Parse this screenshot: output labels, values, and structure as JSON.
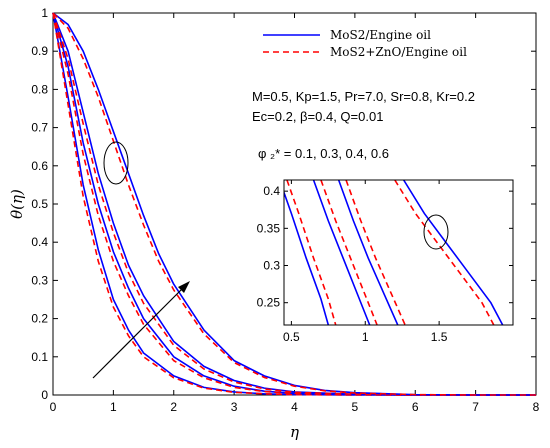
{
  "chart_data": {
    "type": "line",
    "title": "",
    "xlabel": "η",
    "ylabel": "θ(η)",
    "xlim": [
      0,
      8
    ],
    "ylim": [
      0,
      1
    ],
    "x_ticks": [
      0,
      1,
      2,
      3,
      4,
      5,
      6,
      7,
      8
    ],
    "y_ticks": [
      0,
      0.1,
      0.2,
      0.3,
      0.4,
      0.5,
      0.6,
      0.7,
      0.8,
      0.9,
      1
    ],
    "grid": false,
    "legend_position": "top-right",
    "legend": [
      {
        "label": "MoS2/Engine oil",
        "color": "#0000ff",
        "style": "solid"
      },
      {
        "label": "MoS2+ZnO/Engine oil",
        "color": "#ff0000",
        "style": "dashed"
      }
    ],
    "parameters": [
      "M=0.5, Kp=1.5, Pr=7.0, Sr=0.8, Kr=0.2",
      "Ec=0.2, β=0.4, Q=0.01"
    ],
    "phi_label": "φ ₂* = 0.1, 0.3, 0.4, 0.6",
    "series": [
      {
        "legend_index": 0,
        "color": "#0000ff",
        "style": "solid",
        "phi": 0.1,
        "x": [
          0,
          0.25,
          0.5,
          0.75,
          1,
          1.25,
          1.5,
          2,
          2.5,
          3,
          3.5,
          4,
          5,
          6,
          8
        ],
        "y": [
          1,
          0.78,
          0.55,
          0.38,
          0.25,
          0.17,
          0.11,
          0.05,
          0.02,
          0.008,
          0.003,
          0.001,
          0,
          0,
          0
        ]
      },
      {
        "legend_index": 1,
        "color": "#ff0000",
        "style": "dashed",
        "phi": 0.1,
        "x": [
          0,
          0.25,
          0.5,
          0.75,
          1,
          1.25,
          1.5,
          2,
          2.5,
          3,
          3.5,
          4,
          5,
          6,
          8
        ],
        "y": [
          1,
          0.76,
          0.52,
          0.35,
          0.23,
          0.155,
          0.1,
          0.045,
          0.018,
          0.007,
          0.003,
          0.001,
          0,
          0,
          0
        ]
      },
      {
        "legend_index": 0,
        "color": "#0000ff",
        "style": "solid",
        "phi": 0.3,
        "x": [
          0,
          0.25,
          0.5,
          0.75,
          1,
          1.25,
          1.5,
          2,
          2.5,
          3,
          3.5,
          4,
          5,
          6,
          8
        ],
        "y": [
          1,
          0.86,
          0.66,
          0.5,
          0.375,
          0.28,
          0.2,
          0.1,
          0.05,
          0.023,
          0.01,
          0.004,
          0.001,
          0,
          0
        ]
      },
      {
        "legend_index": 1,
        "color": "#ff0000",
        "style": "dashed",
        "phi": 0.3,
        "x": [
          0,
          0.25,
          0.5,
          0.75,
          1,
          1.25,
          1.5,
          2,
          2.5,
          3,
          3.5,
          4,
          5,
          6,
          8
        ],
        "y": [
          1,
          0.84,
          0.63,
          0.47,
          0.35,
          0.26,
          0.185,
          0.09,
          0.045,
          0.02,
          0.009,
          0.004,
          0.001,
          0,
          0
        ]
      },
      {
        "legend_index": 0,
        "color": "#0000ff",
        "style": "solid",
        "phi": 0.4,
        "x": [
          0,
          0.25,
          0.5,
          0.75,
          1,
          1.25,
          1.5,
          2,
          2.5,
          3,
          3.5,
          4,
          5,
          6,
          8
        ],
        "y": [
          1,
          0.9,
          0.74,
          0.58,
          0.45,
          0.34,
          0.26,
          0.14,
          0.075,
          0.038,
          0.018,
          0.008,
          0.002,
          0,
          0
        ]
      },
      {
        "legend_index": 1,
        "color": "#ff0000",
        "style": "dashed",
        "phi": 0.4,
        "x": [
          0,
          0.25,
          0.5,
          0.75,
          1,
          1.25,
          1.5,
          2,
          2.5,
          3,
          3.5,
          4,
          5,
          6,
          8
        ],
        "y": [
          1,
          0.88,
          0.71,
          0.55,
          0.425,
          0.32,
          0.24,
          0.13,
          0.068,
          0.034,
          0.016,
          0.007,
          0.002,
          0,
          0
        ]
      },
      {
        "legend_index": 0,
        "color": "#0000ff",
        "style": "solid",
        "phi": 0.6,
        "x": [
          0,
          0.25,
          0.5,
          0.75,
          1,
          1.25,
          1.5,
          1.75,
          2,
          2.5,
          3,
          3.5,
          4,
          4.5,
          5,
          6,
          7,
          8
        ],
        "y": [
          1,
          0.97,
          0.9,
          0.8,
          0.69,
          0.58,
          0.47,
          0.37,
          0.29,
          0.17,
          0.09,
          0.05,
          0.025,
          0.012,
          0.006,
          0.001,
          0,
          0
        ]
      },
      {
        "legend_index": 1,
        "color": "#ff0000",
        "style": "dashed",
        "phi": 0.6,
        "x": [
          0,
          0.25,
          0.5,
          0.75,
          1,
          1.25,
          1.5,
          1.75,
          2,
          2.5,
          3,
          3.5,
          4,
          4.5,
          5,
          6,
          7,
          8
        ],
        "y": [
          1,
          0.96,
          0.88,
          0.78,
          0.665,
          0.55,
          0.445,
          0.35,
          0.275,
          0.16,
          0.085,
          0.046,
          0.023,
          0.011,
          0.005,
          0.001,
          0,
          0
        ]
      }
    ],
    "inset": {
      "xlim": [
        0.45,
        2.0
      ],
      "ylim": [
        0.22,
        0.415
      ],
      "x_ticks": [
        0.5,
        1,
        1.5
      ],
      "y_ticks": [
        0.25,
        0.3,
        0.35,
        0.4
      ],
      "series": [
        {
          "color": "#0000ff",
          "style": "solid",
          "x": [
            0.42,
            0.5,
            0.6,
            0.7,
            0.75
          ],
          "y": [
            0.415,
            0.37,
            0.31,
            0.255,
            0.22
          ]
        },
        {
          "color": "#ff0000",
          "style": "dashed",
          "x": [
            0.47,
            0.55,
            0.65,
            0.75,
            0.8
          ],
          "y": [
            0.415,
            0.37,
            0.31,
            0.255,
            0.22
          ]
        },
        {
          "color": "#0000ff",
          "style": "solid",
          "x": [
            0.65,
            0.75,
            0.85,
            0.95,
            1.03
          ],
          "y": [
            0.415,
            0.36,
            0.31,
            0.26,
            0.22
          ]
        },
        {
          "color": "#ff0000",
          "style": "dashed",
          "x": [
            0.7,
            0.8,
            0.9,
            1.0,
            1.08
          ],
          "y": [
            0.415,
            0.36,
            0.31,
            0.26,
            0.22
          ]
        },
        {
          "color": "#0000ff",
          "style": "solid",
          "x": [
            0.82,
            0.92,
            1.02,
            1.12,
            1.22
          ],
          "y": [
            0.415,
            0.36,
            0.31,
            0.265,
            0.22
          ]
        },
        {
          "color": "#ff0000",
          "style": "dashed",
          "x": [
            0.87,
            0.97,
            1.07,
            1.17,
            1.27
          ],
          "y": [
            0.415,
            0.36,
            0.31,
            0.265,
            0.22
          ]
        },
        {
          "color": "#0000ff",
          "style": "solid",
          "x": [
            1.26,
            1.4,
            1.55,
            1.7,
            1.85,
            1.93
          ],
          "y": [
            0.415,
            0.37,
            0.33,
            0.29,
            0.25,
            0.22
          ]
        },
        {
          "color": "#ff0000",
          "style": "dashed",
          "x": [
            1.2,
            1.34,
            1.49,
            1.64,
            1.79,
            1.87
          ],
          "y": [
            0.415,
            0.37,
            0.33,
            0.29,
            0.25,
            0.22
          ]
        }
      ]
    }
  }
}
